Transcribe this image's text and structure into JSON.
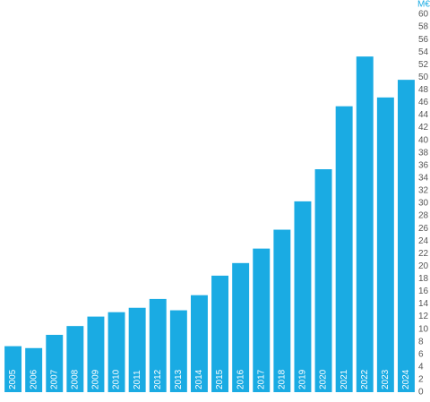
{
  "chart_data": {
    "type": "bar",
    "y_axis_label": "M€",
    "categories": [
      "2005",
      "2006",
      "2007",
      "2008",
      "2009",
      "2010",
      "2011",
      "2012",
      "2013",
      "2014",
      "2015",
      "2016",
      "2017",
      "2018",
      "2019",
      "2020",
      "2021",
      "2022",
      "2023",
      "2024"
    ],
    "values": [
      7.3,
      7.0,
      9.1,
      10.5,
      12.0,
      12.7,
      13.4,
      14.8,
      13.0,
      15.4,
      18.5,
      20.5,
      22.8,
      25.8,
      30.3,
      35.4,
      45.4,
      53.3,
      46.8,
      49.6
    ],
    "color": "#1aabe3",
    "ylim": [
      0,
      60
    ],
    "yticks": [
      0,
      2,
      4,
      6,
      8,
      10,
      12,
      14,
      16,
      18,
      20,
      22,
      24,
      26,
      28,
      30,
      32,
      34,
      36,
      38,
      40,
      42,
      44,
      46,
      48,
      50,
      52,
      54,
      56,
      58,
      60
    ],
    "grid": false
  }
}
